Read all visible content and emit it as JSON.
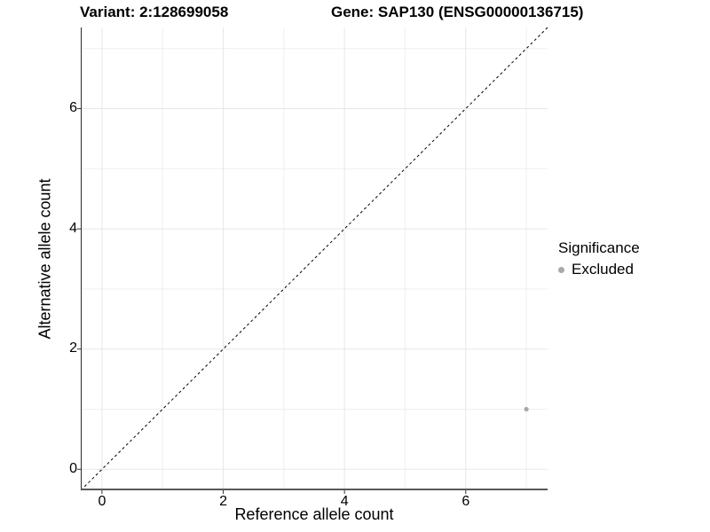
{
  "header": {
    "variant_title": "Variant: 2:128699058",
    "gene_title": "Gene: SAP130 (ENSG00000136715)"
  },
  "axes": {
    "x_label": "Reference allele count",
    "y_label": "Alternative allele count"
  },
  "legend": {
    "title": "Significance",
    "items": [
      {
        "label": "Excluded",
        "color": "#a9a9a9"
      }
    ]
  },
  "chart_data": {
    "type": "scatter",
    "title": "Variant: 2:128699058  /  Gene: SAP130 (ENSG00000136715)",
    "xlabel": "Reference allele count",
    "ylabel": "Alternative allele count",
    "xlim": [
      -0.35,
      7.35
    ],
    "ylim": [
      -0.35,
      7.35
    ],
    "x_ticks": [
      0,
      2,
      4,
      6
    ],
    "y_ticks": [
      0,
      2,
      4,
      6
    ],
    "x_minor_ticks": [
      1,
      3,
      5,
      7
    ],
    "y_minor_ticks": [
      1,
      3,
      5,
      7
    ],
    "grid": "major+minor",
    "legend_position": "right",
    "series": [
      {
        "name": "Excluded",
        "color": "#a9a9a9",
        "points": [
          {
            "x": 7,
            "y": 1
          }
        ]
      }
    ],
    "identity_line": {
      "slope": 1,
      "intercept": 0,
      "style": "dashed",
      "color": "#000000"
    }
  },
  "style": {
    "grid_major_color": "#e7e7e7",
    "grid_minor_color": "#efefef",
    "axis_line_left_color": "#2b2b2b",
    "axis_line_bottom_color": "#595959",
    "tick_color": "#333333",
    "background": "#ffffff"
  }
}
